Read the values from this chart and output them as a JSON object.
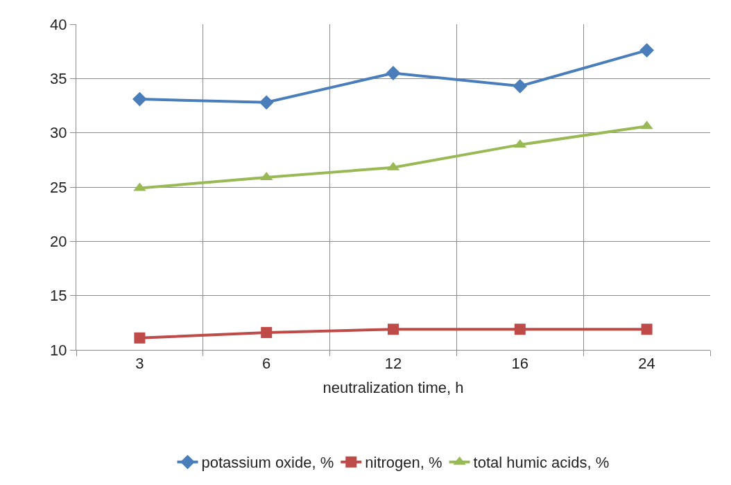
{
  "chart_data": {
    "type": "line",
    "xlabel": "neutralization time, h",
    "categories": [
      "3",
      "6",
      "12",
      "16",
      "24"
    ],
    "series": [
      {
        "name": "potassium oxide, %",
        "color": "#4a7ebb",
        "marker": "diamond",
        "values": [
          33.1,
          32.8,
          35.5,
          34.3,
          37.6
        ]
      },
      {
        "name": "nitrogen, %",
        "color": "#be4b48",
        "marker": "square",
        "values": [
          11.1,
          11.6,
          11.9,
          11.9,
          11.9
        ]
      },
      {
        "name": "total humic acids, %",
        "color": "#98b954",
        "marker": "triangle",
        "values": [
          24.9,
          25.9,
          26.8,
          28.9,
          30.6
        ]
      }
    ],
    "ylim": [
      10,
      40
    ],
    "yticks": [
      10,
      15,
      20,
      25,
      30,
      35,
      40
    ],
    "grid": true,
    "legend": "bottom",
    "line_style": "solid"
  }
}
